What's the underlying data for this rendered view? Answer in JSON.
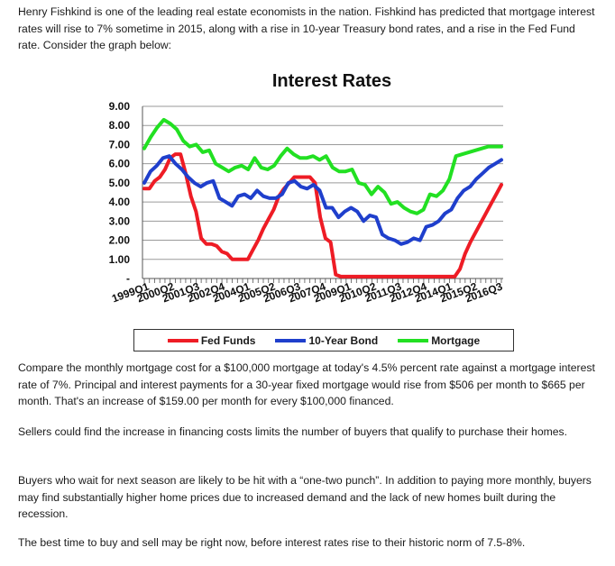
{
  "paragraphs": {
    "intro": "Henry Fishkind is one of the leading real estate economists in the nation. Fishkind has predicted that mortgage interest rates will rise to 7% sometime in 2015, along with a rise in 10-year Treasury bond rates, and a rise in the Fed Fund rate.  Consider the graph below:",
    "compare": "Compare the monthly mortgage cost for a $100,000 mortgage at today's 4.5% percent rate against a mortgage interest rate of 7%.  Principal and interest payments for a 30-year fixed mortgage would rise from $506 per month to $665 per month. That's an increase of $159.00 per month for every $100,000 financed.",
    "sellers": "Sellers could find the increase in financing costs limits the number of buyers that qualify to purchase their homes.",
    "buyers": "Buyers who wait for next season are likely to be hit with a “one-two punch”. In addition to paying more monthly, buyers may find substantially higher home prices due to increased demand and the lack of new homes built during the recession.",
    "best": "The best time to buy and sell may be right now, before interest rates rise to their historic norm of 7.5-8%."
  },
  "chart_data": {
    "type": "line",
    "title": "Interest Rates",
    "xlabel": "",
    "ylabel": "",
    "ylim": [
      0,
      9
    ],
    "yticks": [
      "-",
      "1.00",
      "2.00",
      "3.00",
      "4.00",
      "5.00",
      "6.00",
      "7.00",
      "8.00",
      "9.00"
    ],
    "xtick_labels": [
      "1999Q1",
      "2000Q2",
      "2001Q3",
      "2002Q4",
      "2004Q1",
      "2005Q2",
      "2006Q3",
      "2007Q4",
      "2009Q1",
      "2010Q2",
      "2011Q3",
      "2012Q4",
      "2014Q1",
      "2015Q2",
      "2016Q3"
    ],
    "grid": true,
    "legend_position": "bottom",
    "series": [
      {
        "name": "Fed Funds",
        "color": "#ee1c25",
        "values": [
          4.7,
          4.7,
          5.1,
          5.3,
          5.7,
          6.3,
          6.5,
          6.5,
          5.5,
          4.3,
          3.5,
          2.1,
          1.8,
          1.8,
          1.7,
          1.4,
          1.3,
          1.0,
          1.0,
          1.0,
          1.0,
          1.5,
          2.0,
          2.6,
          3.1,
          3.6,
          4.3,
          4.7,
          5.0,
          5.3,
          5.3,
          5.3,
          5.3,
          5.0,
          3.2,
          2.1,
          1.9,
          0.2,
          0.1,
          0.1,
          0.1,
          0.1,
          0.1,
          0.1,
          0.1,
          0.1,
          0.1,
          0.1,
          0.1,
          0.1,
          0.1,
          0.1,
          0.1,
          0.1,
          0.1,
          0.1,
          0.1,
          0.1,
          0.1,
          0.1,
          0.1,
          0.5,
          1.3,
          1.9,
          2.4,
          2.9,
          3.4,
          3.9,
          4.4,
          4.9
        ]
      },
      {
        "name": "10-Year Bond",
        "color": "#1f3fcc",
        "values": [
          5.0,
          5.6,
          5.9,
          6.3,
          6.4,
          6.0,
          5.7,
          5.3,
          5.0,
          4.8,
          5.0,
          5.1,
          4.2,
          4.0,
          3.8,
          4.3,
          4.4,
          4.2,
          4.6,
          4.3,
          4.2,
          4.2,
          4.4,
          5.0,
          5.1,
          4.8,
          4.7,
          4.9,
          4.6,
          3.7,
          3.7,
          3.2,
          3.5,
          3.7,
          3.5,
          3.0,
          3.3,
          3.2,
          2.3,
          2.1,
          2.0,
          1.8,
          1.9,
          2.1,
          2.0,
          2.7,
          2.8,
          3.0,
          3.4,
          3.6,
          4.2,
          4.6,
          4.8,
          5.2,
          5.5,
          5.8,
          6.0,
          6.2
        ]
      },
      {
        "name": "Mortgage",
        "color": "#22e022",
        "values": [
          6.8,
          7.4,
          7.9,
          8.3,
          8.1,
          7.8,
          7.2,
          6.9,
          7.0,
          6.6,
          6.7,
          6.0,
          5.8,
          5.6,
          5.8,
          5.9,
          5.7,
          6.3,
          5.8,
          5.7,
          5.9,
          6.4,
          6.8,
          6.5,
          6.3,
          6.3,
          6.4,
          6.2,
          6.4,
          5.8,
          5.6,
          5.6,
          5.7,
          5.0,
          4.9,
          4.4,
          4.8,
          4.5,
          3.9,
          4.0,
          3.7,
          3.5,
          3.4,
          3.6,
          4.4,
          4.3,
          4.6,
          5.2,
          6.4,
          6.5,
          6.6,
          6.7,
          6.8,
          6.9,
          6.9,
          6.9
        ]
      }
    ]
  }
}
